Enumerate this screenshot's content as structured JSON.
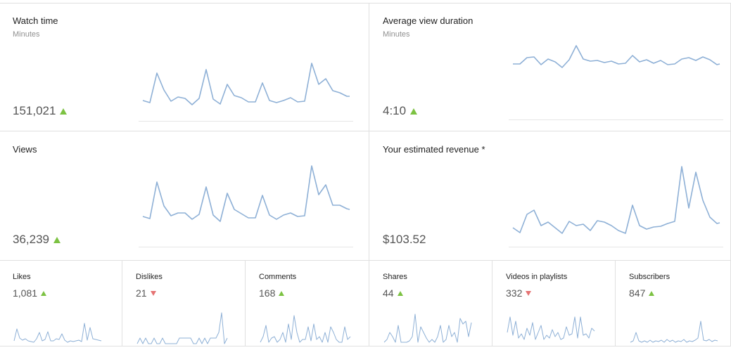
{
  "colors": {
    "line": "#8eb0d6",
    "up": "#7cc242",
    "down": "#e57373",
    "border": "#e0e0e0"
  },
  "cards": {
    "watch_time": {
      "title": "Watch time",
      "subtitle": "Minutes",
      "value": "151,021",
      "trend": "up"
    },
    "avg_view_duration": {
      "title": "Average view duration",
      "subtitle": "Minutes",
      "value": "4:10",
      "trend": "up"
    },
    "views": {
      "title": "Views",
      "value": "36,239",
      "trend": "up"
    },
    "revenue": {
      "title": "Your estimated revenue *",
      "value": "$103.52"
    }
  },
  "small_cards": {
    "likes": {
      "title": "Likes",
      "value": "1,081",
      "trend": "up"
    },
    "dislikes": {
      "title": "Dislikes",
      "value": "21",
      "trend": "down"
    },
    "comments": {
      "title": "Comments",
      "value": "168",
      "trend": "up"
    },
    "shares": {
      "title": "Shares",
      "value": "44",
      "trend": "up"
    },
    "playlists": {
      "title": "Videos in playlists",
      "value": "332",
      "trend": "down"
    },
    "subscribers": {
      "title": "Subscribers",
      "value": "847",
      "trend": "up"
    }
  }
}
